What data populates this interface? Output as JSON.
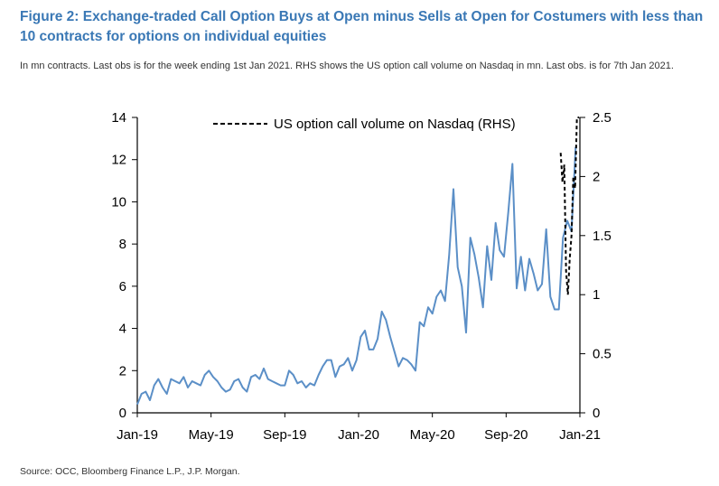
{
  "header": {
    "title": "Figure 2: Exchange-traded Call Option Buys at Open minus Sells at Open for Costumers with less than 10 contracts for options on individual equities",
    "subtitle": "In mn contracts. Last obs is for the week ending 1st Jan 2021. RHS shows the US option call volume on Nasdaq in mn. Last obs. is for 7th Jan 2021."
  },
  "footer": {
    "source": "Source: OCC, Bloomberg Finance L.P., J.P. Morgan."
  },
  "colors": {
    "lhs_series": "#5b8fc7",
    "rhs_series": "#000000",
    "title": "#3a78b5"
  },
  "chart_data": {
    "type": "line",
    "x_ticks": [
      "Jan-19",
      "May-19",
      "Sep-19",
      "Jan-20",
      "May-20",
      "Sep-20",
      "Jan-21"
    ],
    "x_range": [
      "2019-01-04",
      "2021-01-08"
    ],
    "ylim_left": [
      0,
      14
    ],
    "y_ticks_left": [
      "0",
      "2",
      "4",
      "6",
      "8",
      "10",
      "12",
      "14"
    ],
    "ylim_right": [
      0,
      2.5
    ],
    "y_ticks_right": [
      "0",
      "0.5",
      "1",
      "1.5",
      "2",
      "2.5"
    ],
    "grid": false,
    "legend_position": "top-center",
    "series": [
      {
        "axis": "left",
        "style": "solid",
        "x": [
          "2019-01-04",
          "2019-01-11",
          "2019-01-18",
          "2019-01-25",
          "2019-02-01",
          "2019-02-08",
          "2019-02-15",
          "2019-02-22",
          "2019-03-01",
          "2019-03-08",
          "2019-03-15",
          "2019-03-22",
          "2019-03-29",
          "2019-04-05",
          "2019-04-12",
          "2019-04-19",
          "2019-04-26",
          "2019-05-03",
          "2019-05-10",
          "2019-05-17",
          "2019-05-24",
          "2019-05-31",
          "2019-06-07",
          "2019-06-14",
          "2019-06-21",
          "2019-06-28",
          "2019-07-05",
          "2019-07-12",
          "2019-07-19",
          "2019-07-26",
          "2019-08-02",
          "2019-08-09",
          "2019-08-16",
          "2019-08-23",
          "2019-08-30",
          "2019-09-06",
          "2019-09-13",
          "2019-09-20",
          "2019-09-27",
          "2019-10-04",
          "2019-10-11",
          "2019-10-18",
          "2019-10-25",
          "2019-11-01",
          "2019-11-08",
          "2019-11-15",
          "2019-11-22",
          "2019-11-29",
          "2019-12-06",
          "2019-12-13",
          "2019-12-20",
          "2019-12-27",
          "2020-01-03",
          "2020-01-10",
          "2020-01-17",
          "2020-01-24",
          "2020-01-31",
          "2020-02-07",
          "2020-02-14",
          "2020-02-21",
          "2020-02-28",
          "2020-03-06",
          "2020-03-13",
          "2020-03-20",
          "2020-03-27",
          "2020-04-03",
          "2020-04-10",
          "2020-04-17",
          "2020-04-24",
          "2020-05-01",
          "2020-05-08",
          "2020-05-15",
          "2020-05-22",
          "2020-05-29",
          "2020-06-05",
          "2020-06-12",
          "2020-06-19",
          "2020-06-26",
          "2020-07-03",
          "2020-07-10",
          "2020-07-17",
          "2020-07-24",
          "2020-07-31",
          "2020-08-07",
          "2020-08-14",
          "2020-08-21",
          "2020-08-28",
          "2020-09-04",
          "2020-09-11",
          "2020-09-18",
          "2020-09-25",
          "2020-10-02",
          "2020-10-09",
          "2020-10-16",
          "2020-10-23",
          "2020-10-30",
          "2020-11-06",
          "2020-11-13",
          "2020-11-20",
          "2020-11-27",
          "2020-12-04",
          "2020-12-11",
          "2020-12-18",
          "2020-12-25",
          "2021-01-01"
        ],
        "values": [
          0.4,
          0.9,
          1.0,
          0.6,
          1.3,
          1.6,
          1.2,
          0.9,
          1.6,
          1.5,
          1.4,
          1.7,
          1.2,
          1.5,
          1.4,
          1.3,
          1.8,
          2.0,
          1.7,
          1.5,
          1.2,
          1.0,
          1.1,
          1.5,
          1.6,
          1.2,
          1.0,
          1.7,
          1.8,
          1.6,
          2.1,
          1.6,
          1.5,
          1.4,
          1.3,
          1.3,
          2.0,
          1.8,
          1.4,
          1.5,
          1.2,
          1.4,
          1.3,
          1.8,
          2.2,
          2.5,
          2.5,
          1.7,
          2.2,
          2.3,
          2.6,
          2.0,
          2.5,
          3.6,
          3.9,
          3.0,
          3.0,
          3.5,
          4.8,
          4.4,
          3.6,
          2.9,
          2.2,
          2.6,
          2.5,
          2.3,
          2.0,
          4.3,
          4.1,
          5.0,
          4.7,
          5.5,
          5.8,
          5.3,
          7.5,
          10.6,
          6.9,
          6.0,
          3.8,
          8.3,
          7.5,
          6.4,
          5.0,
          7.9,
          6.3,
          9.0,
          7.7,
          7.4,
          9.5,
          11.8,
          5.9,
          7.4,
          5.8,
          7.3,
          6.6,
          5.8,
          6.1,
          8.7,
          5.5,
          4.9,
          4.9,
          8.3,
          9.1,
          8.6,
          12.6
        ]
      },
      {
        "axis": "right",
        "style": "dashed",
        "name": "US option call volume on Nasdaq (RHS)",
        "x": [
          "2020-12-07",
          "2020-12-10",
          "2020-12-13",
          "2020-12-16",
          "2020-12-19",
          "2020-12-22",
          "2020-12-25",
          "2020-12-28",
          "2020-12-31",
          "2021-01-03",
          "2021-01-07"
        ],
        "values": [
          2.2,
          1.95,
          2.1,
          1.2,
          1.0,
          1.3,
          1.5,
          2.0,
          1.9,
          2.5,
          2.5
        ]
      }
    ]
  }
}
